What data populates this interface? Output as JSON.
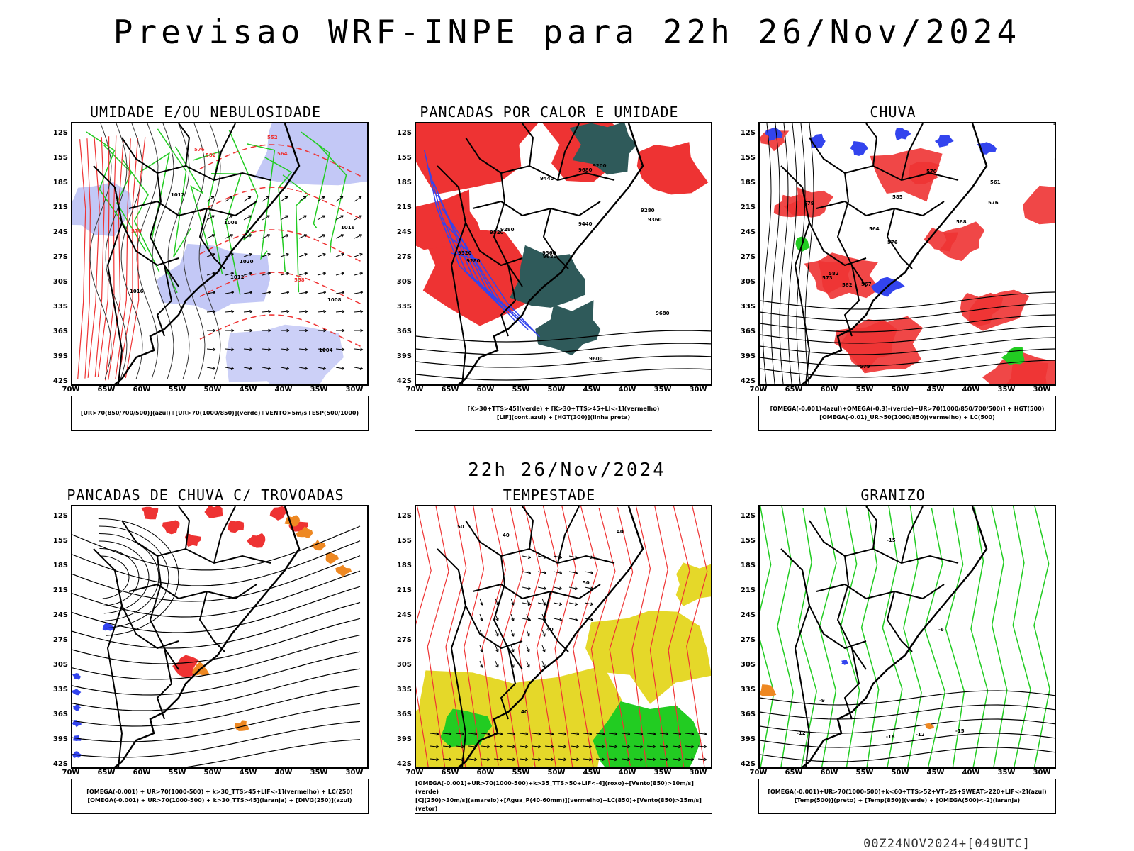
{
  "header": {
    "title": "Previsao WRF-INPE  para 22h 26/Nov/2024"
  },
  "mid_title": "22h 26/Nov/2024",
  "footer": "00Z24NOV2024+[049UTC]",
  "axes": {
    "lat_labels": [
      "12S",
      "15S",
      "18S",
      "21S",
      "24S",
      "27S",
      "30S",
      "33S",
      "36S",
      "39S",
      "42S"
    ],
    "lon_labels": [
      "70W",
      "65W",
      "60W",
      "55W",
      "50W",
      "45W",
      "40W",
      "35W",
      "30W"
    ]
  },
  "colors": {
    "red": "#ee3333",
    "green": "#22cc22",
    "blue": "#3344ee",
    "lilac": "#aab0f2",
    "yellow": "#e5d829",
    "orange": "#ee8822",
    "teal": "#2f5a5a",
    "black": "#000000"
  },
  "panels": [
    {
      "title": "UMIDADE E/OU NEBULOSIDADE",
      "legend": [
        "[UR>70(850/700/500)](azul)+[UR>70(1000/850)](verde)+VENTO>5m/s+ESP(500/1000)"
      ],
      "contour_labels": [
        "1016",
        "1012",
        "1008",
        "1004",
        "1020",
        "1016",
        "1012",
        "1008",
        "570",
        "576",
        "582",
        "564",
        "558",
        "552"
      ]
    },
    {
      "title": "PANCADAS POR CALOR E UMIDADE",
      "legend": [
        "[K>30+TTS>45](verde) + [K>30+TTS>45+LI<-1](vermelho)",
        "[LIF](cont.azul) + [HGT(300)](linha preta)"
      ],
      "contour_labels": [
        "9680",
        "9680",
        "9680",
        "9600",
        "9520",
        "9520",
        "9440",
        "9360",
        "9280",
        "9200",
        "9360",
        "9440",
        "9280",
        "9280"
      ]
    },
    {
      "title": "CHUVA",
      "legend": [
        "[OMEGA(-0.001)-(azul)+OMEGA(-0.3)-(verde)+UR>70(1000/850/700/500)] + HGT(500)",
        "[OMEGA(-0.01)_UR>50(1000/850)(vermelho) + LC(500)"
      ],
      "contour_labels": [
        "588",
        "585",
        "582",
        "579",
        "576",
        "573",
        "570",
        "567",
        "564",
        "561",
        "582",
        "579",
        "576"
      ]
    },
    {
      "title": "PANCADAS DE CHUVA C/ TROVOADAS",
      "legend": [
        "[OMEGA(-0.001) + UR>70(1000-500) + k>30_TTS>45+LIF<-1](vermelho) + LC(250)",
        "[OMEGA(-0.001) + UR>70(1000-500) + k>30_TTS>45](laranja) + [DIVG(250)](azul)"
      ],
      "contour_labels": []
    },
    {
      "title": "TEMPESTADE",
      "legend": [
        "[OMEGA(-0.001)+UR>70(1000-500)+k>35_TTS>50+LIF<-4](roxo)+[Vento(850)>10m/s](verde)",
        "[CJ(250)>30m/s](amarelo)+[Agua_P(40-60mm)](vermelho)+LC(850)+[Vento(850)>15m/s](vetor)"
      ],
      "contour_labels": [
        "40",
        "50",
        "40",
        "40",
        "50",
        "40"
      ]
    },
    {
      "title": "GRANIZO",
      "legend": [
        "[OMEGA(-0.001)+UR>70(1000-500)+k<60+TTS>52+VT>25+SWEAT>220+LIF<-2](azul)",
        "[Temp(500)](preto) + [Temp(850)](verde) + [OMEGA(500)<-2](laranja)"
      ],
      "contour_labels": [
        "-12",
        "-9",
        "-12",
        "-15",
        "-15",
        "-18",
        "-6"
      ]
    }
  ]
}
